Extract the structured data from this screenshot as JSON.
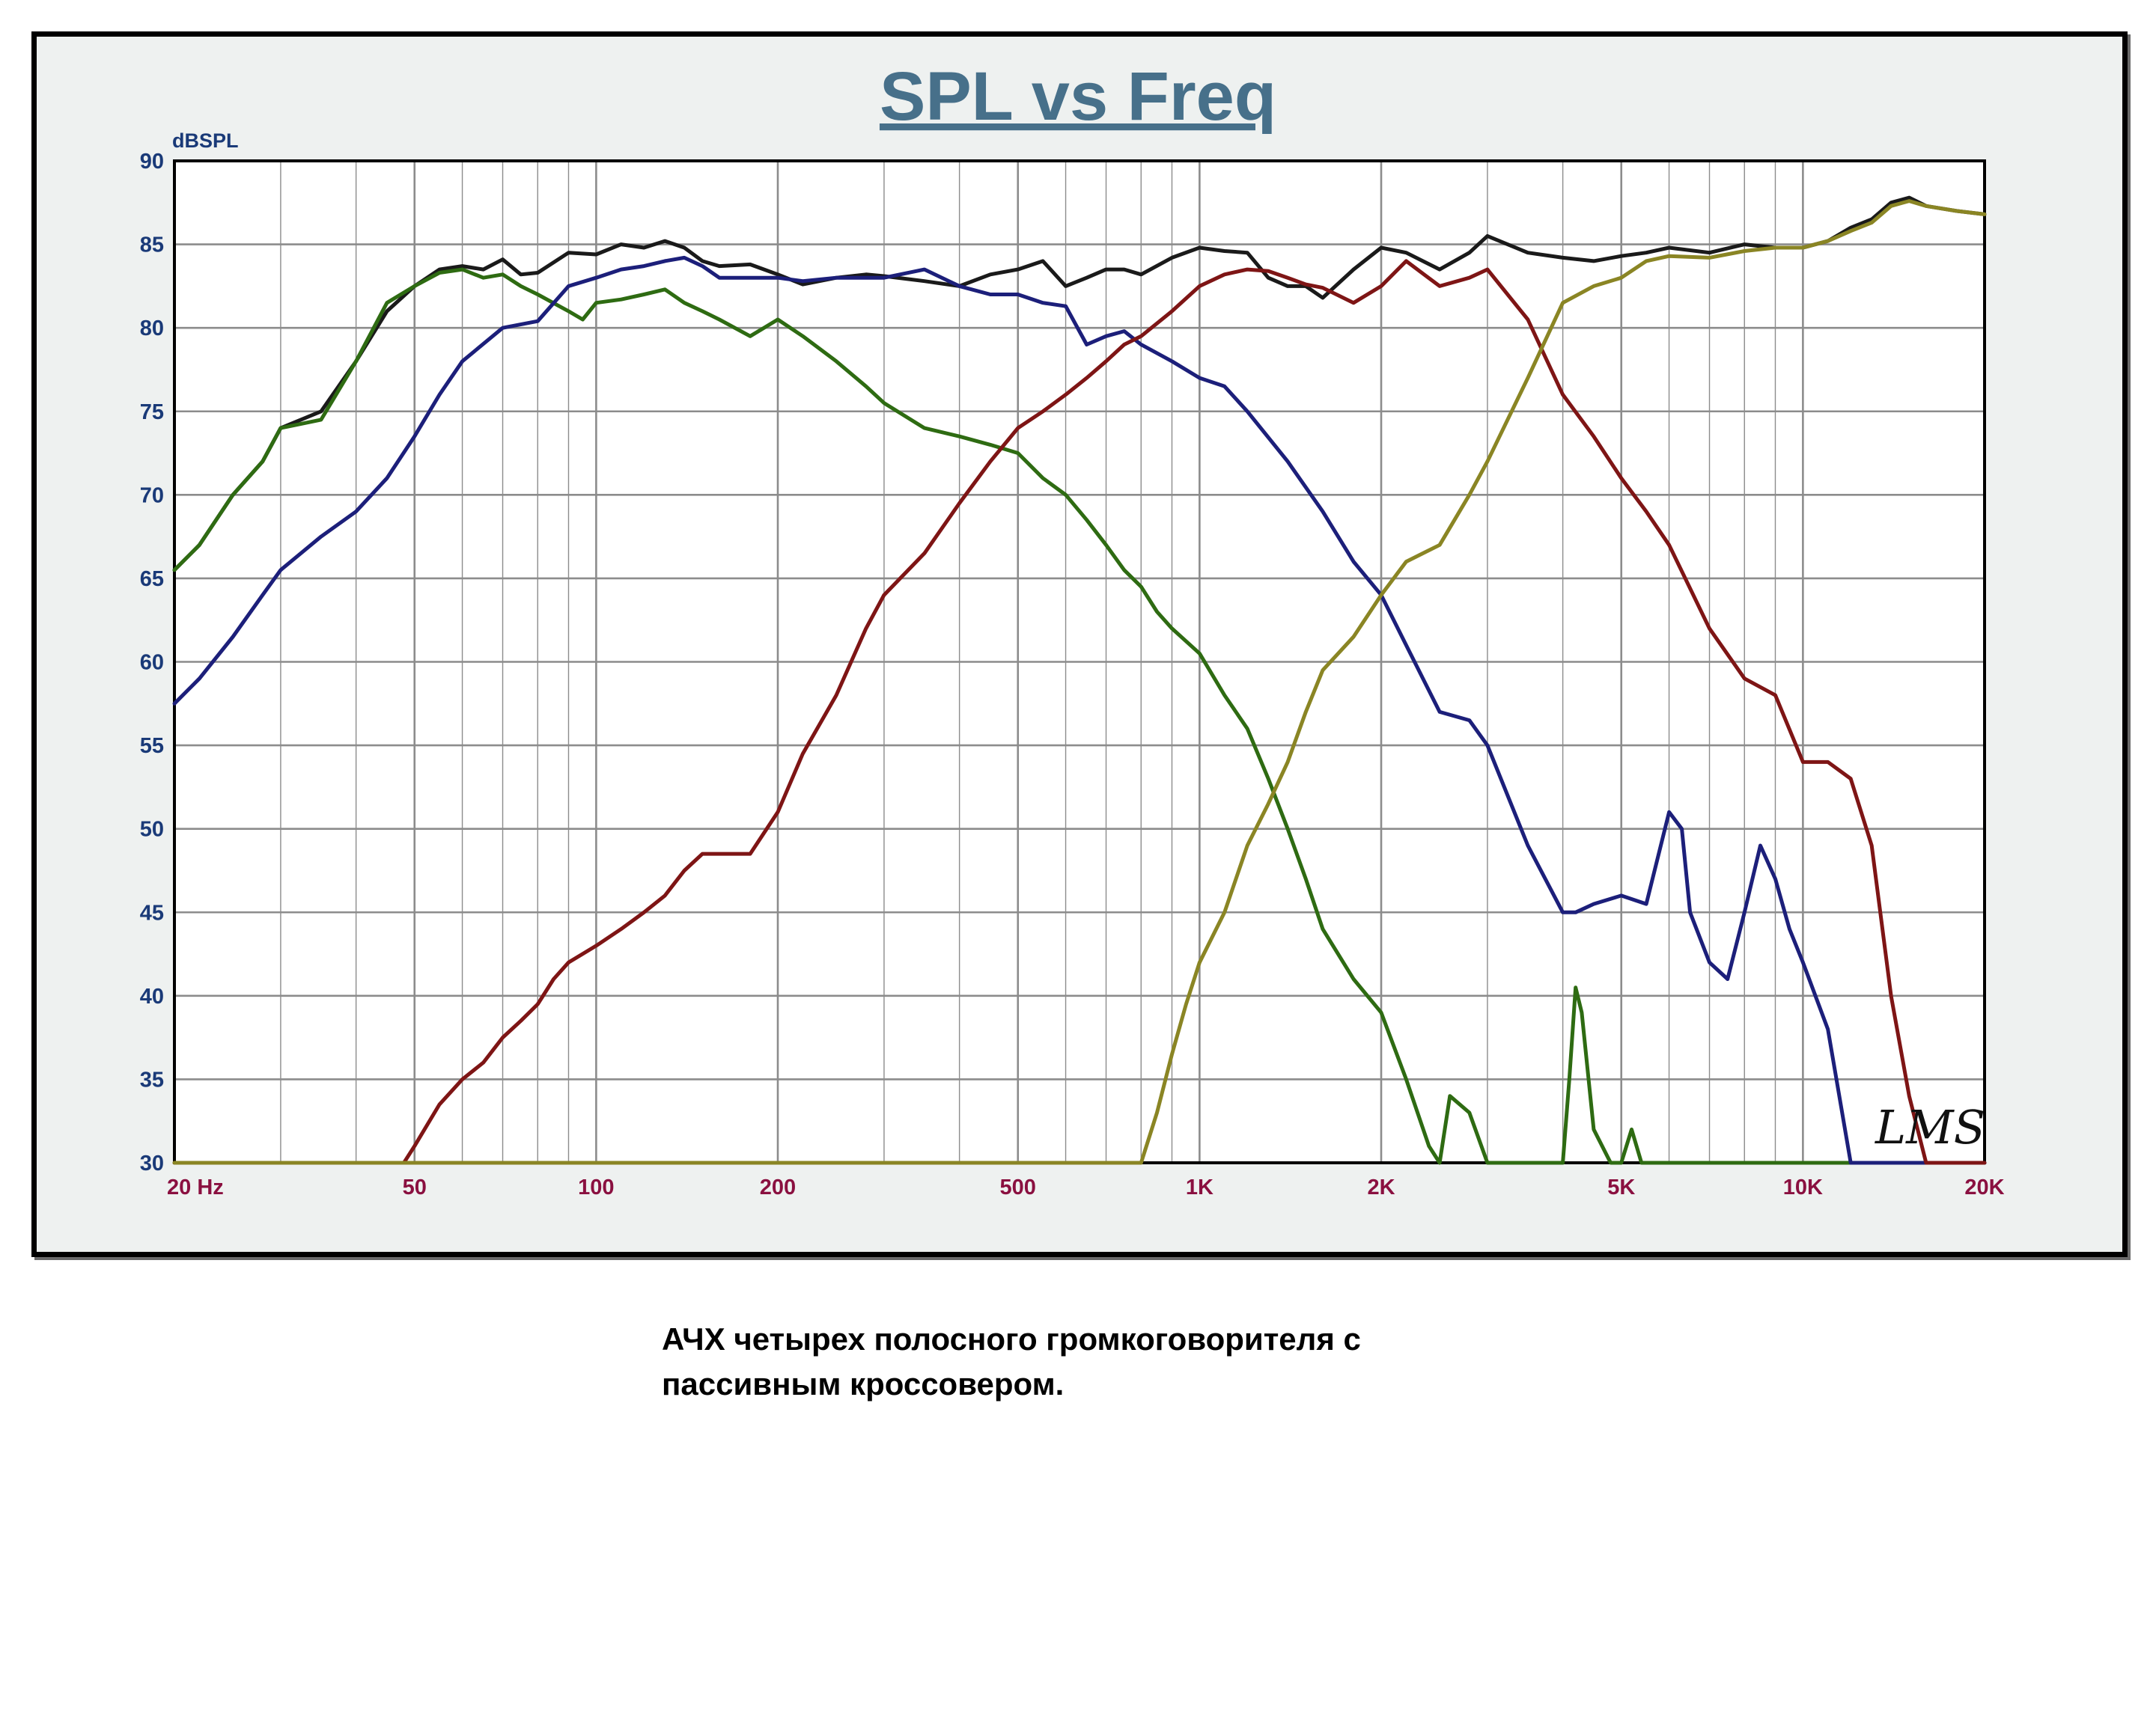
{
  "chart_data": {
    "type": "line",
    "title": "SPL vs Freq",
    "ylabel": "dBSPL",
    "xlabel": "",
    "x_scale": "log",
    "xlim": [
      20,
      20000
    ],
    "ylim": [
      30,
      90
    ],
    "y_ticks": [
      90,
      85,
      80,
      75,
      70,
      65,
      60,
      55,
      50,
      45,
      40,
      35,
      30
    ],
    "y_tick_labels": [
      "90",
      "85",
      "80",
      "75",
      "70",
      "65",
      "60",
      "55",
      "50",
      "45",
      "40",
      "35",
      "30"
    ],
    "x_ticks": [
      20,
      50,
      100,
      200,
      500,
      1000,
      2000,
      5000,
      10000,
      20000
    ],
    "x_tick_labels": [
      "20  Hz",
      "50",
      "100",
      "200",
      "500",
      "1K",
      "2K",
      "5K",
      "10K",
      "20K"
    ],
    "grid": true,
    "watermark": "LMS",
    "colors": {
      "axis_text": "#1a3a78",
      "x_text": "#8a1040",
      "title": "#47708a",
      "grid": "#8c8c8c"
    },
    "series": [
      {
        "color": "#1a1a1a",
        "x": [
          20,
          22,
          25,
          28,
          30,
          35,
          40,
          45,
          50,
          55,
          60,
          65,
          70,
          75,
          80,
          90,
          100,
          110,
          120,
          130,
          140,
          150,
          160,
          180,
          200,
          220,
          250,
          280,
          300,
          350,
          400,
          450,
          500,
          550,
          600,
          650,
          700,
          750,
          800,
          900,
          1000,
          1100,
          1200,
          1300,
          1400,
          1500,
          1600,
          1800,
          2000,
          2200,
          2500,
          2800,
          3000,
          3500,
          4000,
          4500,
          5000,
          5500,
          6000,
          7000,
          8000,
          9000,
          10000,
          11000,
          12000,
          13000,
          14000,
          15000,
          16000,
          18000,
          20000
        ],
        "values": [
          65.5,
          67,
          70,
          72,
          74,
          75,
          78,
          81,
          82.5,
          83.5,
          83.7,
          83.5,
          84.1,
          83.2,
          83.3,
          84.5,
          84.4,
          85,
          84.8,
          85.2,
          84.8,
          84,
          83.7,
          83.8,
          83.2,
          82.6,
          83,
          83.2,
          83.1,
          82.8,
          82.5,
          83.2,
          83.5,
          84,
          82.5,
          83,
          83.5,
          83.5,
          83.2,
          84.2,
          84.8,
          84.6,
          84.5,
          83,
          82.5,
          82.5,
          81.8,
          83.5,
          84.8,
          84.5,
          83.5,
          84.5,
          85.5,
          84.5,
          84.2,
          84,
          84.3,
          84.5,
          84.8,
          84.5,
          85,
          84.8,
          84.8,
          85.2,
          86,
          86.5,
          87.5,
          87.8,
          87.3,
          87,
          86.8
        ]
      },
      {
        "color": "#2e6b12",
        "x": [
          20,
          22,
          25,
          28,
          30,
          35,
          40,
          45,
          50,
          55,
          60,
          65,
          70,
          75,
          80,
          90,
          95,
          100,
          110,
          120,
          130,
          140,
          150,
          160,
          180,
          200,
          220,
          250,
          280,
          300,
          350,
          400,
          450,
          500,
          550,
          600,
          650,
          700,
          750,
          800,
          850,
          900,
          1000,
          1100,
          1200,
          1300,
          1400,
          1500,
          1600,
          1800,
          2000,
          2200,
          2400,
          2500,
          2600,
          2800,
          3000,
          3500,
          4000,
          4100,
          4200,
          4300,
          4500,
          4800,
          5000,
          5200,
          5400,
          6000,
          20000
        ],
        "values": [
          65.5,
          67,
          70,
          72,
          74,
          74.5,
          78,
          81.5,
          82.5,
          83.3,
          83.5,
          83,
          83.2,
          82.5,
          82,
          81,
          80.5,
          81.5,
          81.7,
          82,
          82.3,
          81.5,
          81,
          80.5,
          79.5,
          80.5,
          79.5,
          78,
          76.5,
          75.5,
          74,
          73.5,
          73,
          72.5,
          71,
          70,
          68.5,
          67,
          65.5,
          64.5,
          63,
          62,
          60.5,
          58,
          56,
          53,
          50,
          47,
          44,
          41,
          39,
          35,
          31,
          30,
          34,
          33,
          30,
          30,
          30,
          35,
          40.5,
          39,
          32,
          30,
          30,
          32,
          30,
          30,
          30
        ]
      },
      {
        "color": "#1c1f7a",
        "x": [
          20,
          22,
          25,
          28,
          30,
          35,
          40,
          45,
          50,
          55,
          60,
          70,
          80,
          90,
          100,
          110,
          120,
          130,
          140,
          150,
          160,
          180,
          200,
          220,
          250,
          280,
          300,
          350,
          400,
          450,
          500,
          550,
          600,
          650,
          700,
          750,
          800,
          900,
          1000,
          1100,
          1200,
          1400,
          1600,
          1800,
          2000,
          2200,
          2500,
          2800,
          3000,
          3500,
          4000,
          4200,
          4500,
          5000,
          5500,
          6000,
          6300,
          6500,
          7000,
          7500,
          8000,
          8500,
          9000,
          9500,
          10000,
          11000,
          12000,
          14000,
          20000
        ],
        "values": [
          57.5,
          59,
          61.5,
          64,
          65.5,
          67.5,
          69,
          71,
          73.5,
          76,
          78,
          80,
          80.4,
          82.5,
          83,
          83.5,
          83.7,
          84,
          84.2,
          83.7,
          83,
          83,
          83,
          82.8,
          83,
          83,
          83,
          83.5,
          82.5,
          82,
          82,
          81.5,
          81.3,
          79,
          79.5,
          79.8,
          79,
          78,
          77,
          76.5,
          75,
          72,
          69,
          66,
          64,
          61,
          57,
          56.5,
          55,
          49,
          45,
          45,
          45.5,
          46,
          45.5,
          51,
          50,
          45,
          42,
          41,
          45,
          49,
          47,
          44,
          42,
          38,
          30,
          30,
          30
        ]
      },
      {
        "color": "#7e1515",
        "x": [
          20,
          30,
          40,
          45,
          48,
          50,
          55,
          60,
          65,
          70,
          75,
          80,
          85,
          90,
          100,
          110,
          120,
          130,
          140,
          150,
          160,
          170,
          180,
          200,
          220,
          250,
          280,
          300,
          350,
          400,
          450,
          500,
          550,
          600,
          650,
          700,
          750,
          800,
          900,
          1000,
          1100,
          1200,
          1300,
          1400,
          1500,
          1600,
          1800,
          2000,
          2200,
          2500,
          2800,
          3000,
          3500,
          4000,
          4500,
          5000,
          5500,
          6000,
          7000,
          8000,
          9000,
          10000,
          11000,
          12000,
          13000,
          14000,
          15000,
          16000,
          17000,
          18000,
          20000
        ],
        "values": [
          30,
          30,
          30,
          30,
          30,
          31,
          33.5,
          35,
          36,
          37.5,
          38.5,
          39.5,
          41,
          42,
          43,
          44,
          45,
          46,
          47.5,
          48.5,
          48.5,
          48.5,
          48.5,
          51,
          54.5,
          58,
          62,
          64,
          66.5,
          69.5,
          72,
          74,
          75,
          76,
          77,
          78,
          79,
          79.5,
          81,
          82.5,
          83.2,
          83.5,
          83.4,
          83,
          82.6,
          82.4,
          81.5,
          82.5,
          84,
          82.5,
          83,
          83.5,
          80.5,
          76,
          73.5,
          71,
          69,
          67,
          62,
          59,
          58,
          54,
          54,
          53,
          49,
          40,
          34,
          30,
          30,
          30,
          30
        ]
      },
      {
        "color": "#8a8524",
        "x": [
          20,
          800,
          850,
          900,
          950,
          1000,
          1100,
          1200,
          1300,
          1400,
          1500,
          1600,
          1800,
          2000,
          2200,
          2500,
          2800,
          3000,
          3500,
          4000,
          4500,
          5000,
          5500,
          6000,
          7000,
          8000,
          9000,
          10000,
          11000,
          12000,
          13000,
          14000,
          15000,
          16000,
          18000,
          20000
        ],
        "values": [
          30,
          30,
          33,
          36.5,
          39.5,
          42,
          45,
          49,
          51.5,
          54,
          57,
          59.5,
          61.5,
          64,
          66,
          67,
          70,
          72,
          77,
          81.5,
          82.5,
          83,
          84,
          84.3,
          84.2,
          84.6,
          84.8,
          84.8,
          85.2,
          85.8,
          86.3,
          87.3,
          87.6,
          87.3,
          87,
          86.8
        ]
      }
    ]
  },
  "caption": {
    "line1": "АЧХ четырех полосного громкоговорителя с",
    "line2": "пассивным кроссовером."
  }
}
